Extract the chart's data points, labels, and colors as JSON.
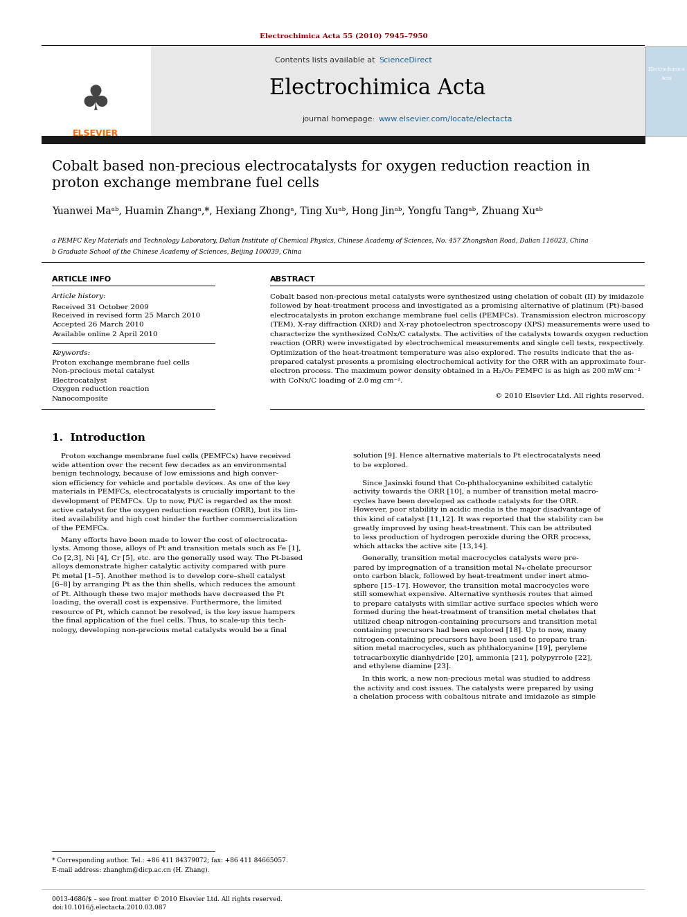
{
  "page_width": 9.92,
  "page_height": 13.23,
  "bg_color": "#ffffff",
  "top_citation": "Electrochimica Acta 55 (2010) 7945–7950",
  "top_citation_color": "#8B0000",
  "journal_name": "Electrochimica Acta",
  "contents_text": "Contents lists available at ",
  "science_direct": "ScienceDirect",
  "science_direct_color": "#1a6496",
  "journal_homepage_text": "journal homepage: ",
  "journal_homepage_url": "www.elsevier.com/locate/electacta",
  "journal_homepage_url_color": "#1a6496",
  "article_title_line1": "Cobalt based non-precious electrocatalysts for oxygen reduction reaction in",
  "article_title_line2": "proton exchange membrane fuel cells",
  "affil_a": "a PEMFC Key Materials and Technology Laboratory, Dalian Institute of Chemical Physics, Chinese Academy of Sciences, No. 457 Zhongshan Road, Dalian 116023, China",
  "affil_b": "b Graduate School of the Chinese Academy of Sciences, Beijing 100039, China",
  "section_article_info": "ARTICLE INFO",
  "section_abstract": "ABSTRACT",
  "article_history_label": "Article history:",
  "received1": "Received 31 October 2009",
  "received2": "Received in revised form 25 March 2010",
  "accepted": "Accepted 26 March 2010",
  "available": "Available online 2 April 2010",
  "keywords_label": "Keywords:",
  "keywords": [
    "Proton exchange membrane fuel cells",
    "Non-precious metal catalyst",
    "Electrocatalyst",
    "Oxygen reduction reaction",
    "Nanocomposite"
  ],
  "copyright": "© 2010 Elsevier Ltd. All rights reserved.",
  "intro_heading": "1.  Introduction",
  "footnote_star": "* Corresponding author. Tel.: +86 411 84379072; fax: +86 411 84665057.",
  "footnote_email": "E-mail address: zhanghm@dicp.ac.cn (H. Zhang).",
  "bottom_issn": "0013-4686/$ – see front matter © 2010 Elsevier Ltd. All rights reserved.",
  "bottom_doi": "doi:10.1016/j.electacta.2010.03.087",
  "elsevier_orange": "#FF6600",
  "header_gray_bg": "#e8e8e8",
  "black_bar_color": "#1a1a1a",
  "abstract_lines": [
    "Cobalt based non-precious metal catalysts were synthesized using chelation of cobalt (II) by imidazole",
    "followed by heat-treatment process and investigated as a promising alternative of platinum (Pt)-based",
    "electrocatalysts in proton exchange membrane fuel cells (PEMFCs). Transmission electron microscopy",
    "(TEM), X-ray diffraction (XRD) and X-ray photoelectron spectroscopy (XPS) measurements were used to",
    "characterize the synthesized CoNx/C catalysts. The activities of the catalysts towards oxygen reduction",
    "reaction (ORR) were investigated by electrochemical measurements and single cell tests, respectively.",
    "Optimization of the heat-treatment temperature was also explored. The results indicate that the as-",
    "prepared catalyst presents a promising electrochemical activity for the ORR with an approximate four-",
    "electron process. The maximum power density obtained in a H₂/O₂ PEMFC is as high as 200 mW cm⁻²",
    "with CoNx/C loading of 2.0 mg cm⁻²."
  ],
  "intro_col1_p1_lines": [
    "    Proton exchange membrane fuel cells (PEMFCs) have received",
    "wide attention over the recent few decades as an environmental",
    "benign technology, because of low emissions and high conver-",
    "sion efficiency for vehicle and portable devices. As one of the key",
    "materials in PEMFCs, electrocatalysts is crucially important to the",
    "development of PEMFCs. Up to now, Pt/C is regarded as the most",
    "active catalyst for the oxygen reduction reaction (ORR), but its lim-",
    "ited availability and high cost hinder the further commercialization",
    "of the PEMFCs."
  ],
  "intro_col1_p2_lines": [
    "    Many efforts have been made to lower the cost of electrocata-",
    "lysts. Among those, alloys of Pt and transition metals such as Fe [1],",
    "Co [2,3], Ni [4], Cr [5], etc. are the generally used way. The Pt-based",
    "alloys demonstrate higher catalytic activity compared with pure",
    "Pt metal [1–5]. Another method is to develop core–shell catalyst",
    "[6–8] by arranging Pt as the thin shells, which reduces the amount",
    "of Pt. Although these two major methods have decreased the Pt",
    "loading, the overall cost is expensive. Furthermore, the limited",
    "resource of Pt, which cannot be resolved, is the key issue hampers",
    "the final application of the fuel cells. Thus, to scale-up this tech-",
    "nology, developing non-precious metal catalysts would be a final"
  ],
  "intro_col2_p1_lines": [
    "solution [9]. Hence alternative materials to Pt electrocatalysts need",
    "to be explored."
  ],
  "intro_col2_p2_lines": [
    "    Since Jasinski found that Co-phthalocyanine exhibited catalytic",
    "activity towards the ORR [10], a number of transition metal macro-",
    "cycles have been developed as cathode catalysts for the ORR.",
    "However, poor stability in acidic media is the major disadvantage of",
    "this kind of catalyst [11,12]. It was reported that the stability can be",
    "greatly improved by using heat-treatment. This can be attributed",
    "to less production of hydrogen peroxide during the ORR process,",
    "which attacks the active site [13,14]."
  ],
  "intro_col2_p3_lines": [
    "    Generally, transition metal macrocycles catalysts were pre-",
    "pared by impregnation of a transition metal N₄-chelate precursor",
    "onto carbon black, followed by heat-treatment under inert atmo-",
    "sphere [15–17]. However, the transition metal macrocycles were",
    "still somewhat expensive. Alternative synthesis routes that aimed",
    "to prepare catalysts with similar active surface species which were",
    "formed during the heat-treatment of transition metal chelates that",
    "utilized cheap nitrogen-containing precursors and transition metal",
    "containing precursors had been explored [18]. Up to now, many",
    "nitrogen-containing precursors have been used to prepare tran-",
    "sition metal macrocycles, such as phthalocyanine [19], perylene",
    "tetracarboxylic dianhydride [20], ammonia [21], polypyrrole [22],",
    "and ethylene diamine [23]."
  ],
  "intro_col2_p4_lines": [
    "    In this work, a new non-precious metal was studied to address",
    "the activity and cost issues. The catalysts were prepared by using",
    "a chelation process with cobaltous nitrate and imidazole as simple"
  ]
}
